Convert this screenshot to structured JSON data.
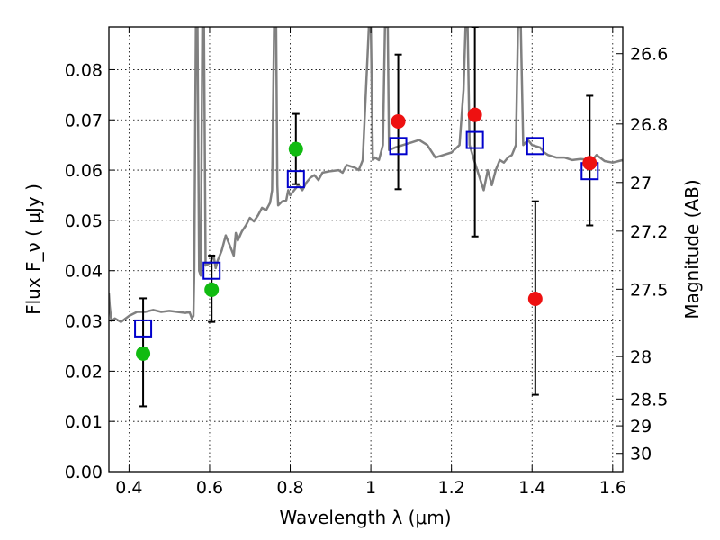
{
  "chart_data": {
    "type": "scatter",
    "xlabel": "Wavelength  λ (μm)",
    "ylabel": "Flux  F_ν  ( μJy )",
    "y2label": "Magnitude (AB)",
    "xlim": [
      0.35,
      1.625
    ],
    "ylim": [
      0.0,
      0.0885
    ],
    "grid": true,
    "x_ticks": [
      {
        "value": 0.4,
        "label": "0.4"
      },
      {
        "value": 0.6,
        "label": "0.6"
      },
      {
        "value": 0.8,
        "label": "0.8"
      },
      {
        "value": 1.0,
        "label": "1"
      },
      {
        "value": 1.2,
        "label": "1.2"
      },
      {
        "value": 1.4,
        "label": "1.4"
      },
      {
        "value": 1.6,
        "label": "1.6"
      }
    ],
    "y_ticks": [
      {
        "value": 0.0,
        "label": "0.00"
      },
      {
        "value": 0.01,
        "label": "0.01"
      },
      {
        "value": 0.02,
        "label": "0.02"
      },
      {
        "value": 0.03,
        "label": "0.03"
      },
      {
        "value": 0.04,
        "label": "0.04"
      },
      {
        "value": 0.05,
        "label": "0.05"
      },
      {
        "value": 0.06,
        "label": "0.06"
      },
      {
        "value": 0.07,
        "label": "0.07"
      },
      {
        "value": 0.08,
        "label": "0.08"
      }
    ],
    "y2_ticks": [
      {
        "mag": 26.6,
        "label": "26.6"
      },
      {
        "mag": 26.8,
        "label": "26.8"
      },
      {
        "mag": 27.0,
        "label": "27"
      },
      {
        "mag": 27.2,
        "label": "27.2"
      },
      {
        "mag": 27.5,
        "label": "27.5"
      },
      {
        "mag": 28.0,
        "label": "28"
      },
      {
        "mag": 28.5,
        "label": "28.5"
      },
      {
        "mag": 29.0,
        "label": "29"
      },
      {
        "mag": 30.0,
        "label": "30"
      }
    ],
    "series": [
      {
        "kind": "spectrum",
        "color": "#808080",
        "points": [
          [
            0.35,
            0.0355
          ],
          [
            0.352,
            0.033
          ],
          [
            0.356,
            0.03
          ],
          [
            0.365,
            0.0305
          ],
          [
            0.38,
            0.0298
          ],
          [
            0.4,
            0.031
          ],
          [
            0.42,
            0.0318
          ],
          [
            0.44,
            0.0318
          ],
          [
            0.46,
            0.0322
          ],
          [
            0.48,
            0.0318
          ],
          [
            0.5,
            0.032
          ],
          [
            0.52,
            0.0318
          ],
          [
            0.54,
            0.0316
          ],
          [
            0.55,
            0.0318
          ],
          [
            0.556,
            0.0305
          ],
          [
            0.56,
            0.031
          ],
          [
            0.562,
            0.04
          ],
          [
            0.566,
            0.0885
          ],
          [
            0.57,
            0.0885
          ],
          [
            0.574,
            0.04
          ],
          [
            0.578,
            0.039
          ],
          [
            0.582,
            0.0885
          ],
          [
            0.586,
            0.0885
          ],
          [
            0.59,
            0.041
          ],
          [
            0.6,
            0.0415
          ],
          [
            0.61,
            0.043
          ],
          [
            0.615,
            0.0405
          ],
          [
            0.62,
            0.042
          ],
          [
            0.63,
            0.044
          ],
          [
            0.64,
            0.047
          ],
          [
            0.65,
            0.045
          ],
          [
            0.66,
            0.043
          ],
          [
            0.665,
            0.0475
          ],
          [
            0.67,
            0.046
          ],
          [
            0.68,
            0.0478
          ],
          [
            0.69,
            0.049
          ],
          [
            0.7,
            0.0505
          ],
          [
            0.71,
            0.0498
          ],
          [
            0.72,
            0.051
          ],
          [
            0.73,
            0.0525
          ],
          [
            0.74,
            0.052
          ],
          [
            0.75,
            0.0535
          ],
          [
            0.755,
            0.056
          ],
          [
            0.76,
            0.0885
          ],
          [
            0.765,
            0.0885
          ],
          [
            0.768,
            0.057
          ],
          [
            0.77,
            0.053
          ],
          [
            0.78,
            0.0538
          ],
          [
            0.79,
            0.054
          ],
          [
            0.795,
            0.056
          ],
          [
            0.8,
            0.055
          ],
          [
            0.81,
            0.056
          ],
          [
            0.82,
            0.057
          ],
          [
            0.83,
            0.056
          ],
          [
            0.84,
            0.0575
          ],
          [
            0.85,
            0.0585
          ],
          [
            0.86,
            0.059
          ],
          [
            0.87,
            0.058
          ],
          [
            0.88,
            0.0595
          ],
          [
            0.9,
            0.0598
          ],
          [
            0.92,
            0.06
          ],
          [
            0.93,
            0.0595
          ],
          [
            0.94,
            0.061
          ],
          [
            0.96,
            0.0605
          ],
          [
            0.97,
            0.06
          ],
          [
            0.98,
            0.062
          ],
          [
            0.995,
            0.0885
          ],
          [
            1.0,
            0.0885
          ],
          [
            1.005,
            0.062
          ],
          [
            1.01,
            0.0625
          ],
          [
            1.02,
            0.062
          ],
          [
            1.03,
            0.065
          ],
          [
            1.035,
            0.0885
          ],
          [
            1.042,
            0.0885
          ],
          [
            1.045,
            0.064
          ],
          [
            1.06,
            0.0645
          ],
          [
            1.08,
            0.065
          ],
          [
            1.1,
            0.0655
          ],
          [
            1.12,
            0.066
          ],
          [
            1.14,
            0.065
          ],
          [
            1.16,
            0.0625
          ],
          [
            1.18,
            0.063
          ],
          [
            1.2,
            0.0635
          ],
          [
            1.22,
            0.065
          ],
          [
            1.23,
            0.076
          ],
          [
            1.235,
            0.0885
          ],
          [
            1.24,
            0.0885
          ],
          [
            1.245,
            0.065
          ],
          [
            1.26,
            0.061
          ],
          [
            1.28,
            0.056
          ],
          [
            1.29,
            0.06
          ],
          [
            1.3,
            0.057
          ],
          [
            1.31,
            0.06
          ],
          [
            1.32,
            0.062
          ],
          [
            1.33,
            0.0615
          ],
          [
            1.34,
            0.0625
          ],
          [
            1.35,
            0.063
          ],
          [
            1.36,
            0.065
          ],
          [
            1.365,
            0.0885
          ],
          [
            1.372,
            0.0885
          ],
          [
            1.378,
            0.065
          ],
          [
            1.39,
            0.066
          ],
          [
            1.4,
            0.065
          ],
          [
            1.42,
            0.0645
          ],
          [
            1.43,
            0.0635
          ],
          [
            1.44,
            0.063
          ],
          [
            1.46,
            0.0625
          ],
          [
            1.48,
            0.0625
          ],
          [
            1.5,
            0.062
          ],
          [
            1.52,
            0.0622
          ],
          [
            1.55,
            0.062
          ],
          [
            1.56,
            0.063
          ],
          [
            1.58,
            0.0618
          ],
          [
            1.6,
            0.0615
          ],
          [
            1.625,
            0.062
          ]
        ]
      },
      {
        "kind": "model-boxes",
        "color": "#0000cc",
        "points": [
          {
            "x": 0.435,
            "y": 0.0285
          },
          {
            "x": 0.605,
            "y": 0.04
          },
          {
            "x": 0.814,
            "y": 0.0582
          },
          {
            "x": 1.068,
            "y": 0.0648
          },
          {
            "x": 1.258,
            "y": 0.066
          },
          {
            "x": 1.408,
            "y": 0.0648
          },
          {
            "x": 1.543,
            "y": 0.0598
          }
        ]
      },
      {
        "kind": "observed-optical",
        "color": "#11bb11",
        "points": [
          {
            "x": 0.435,
            "y": 0.0235,
            "yerr_low": 0.013,
            "yerr_high": 0.0345
          },
          {
            "x": 0.605,
            "y": 0.0362,
            "yerr_low": 0.0298,
            "yerr_high": 0.043
          },
          {
            "x": 0.814,
            "y": 0.0642,
            "yerr_low": 0.0572,
            "yerr_high": 0.0712
          }
        ]
      },
      {
        "kind": "observed-ir",
        "color": "#ee1111",
        "points": [
          {
            "x": 1.068,
            "y": 0.0697,
            "yerr_low": 0.0562,
            "yerr_high": 0.083
          },
          {
            "x": 1.258,
            "y": 0.071,
            "yerr_low": 0.0468,
            "yerr_high": 0.0885
          },
          {
            "x": 1.408,
            "y": 0.0344,
            "yerr_low": 0.0153,
            "yerr_high": 0.0538
          },
          {
            "x": 1.543,
            "y": 0.0614,
            "yerr_low": 0.049,
            "yerr_high": 0.0748
          }
        ]
      }
    ]
  }
}
